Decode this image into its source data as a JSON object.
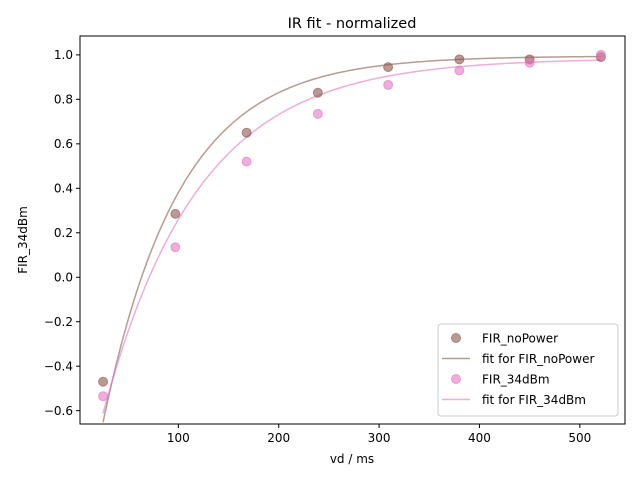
{
  "chart_data": {
    "type": "scatter",
    "title": "IR fit - normalized",
    "xlabel": "vd / ms",
    "ylabel": "FIR_34dBm",
    "xlim": [
      2,
      545
    ],
    "ylim": [
      -0.66,
      1.085
    ],
    "xticks": [
      100,
      200,
      300,
      400,
      500
    ],
    "yticks": [
      -0.6,
      -0.4,
      -0.2,
      0.0,
      0.2,
      0.4,
      0.6,
      0.8,
      1.0
    ],
    "grid": false,
    "legend_position": "lower right",
    "series": [
      {
        "name": "FIR_noPower",
        "kind": "points",
        "color": "#8c564b",
        "x": [
          25,
          97,
          168,
          239,
          309,
          380,
          450,
          521
        ],
        "y": [
          -0.47,
          0.285,
          0.65,
          0.83,
          0.945,
          0.98,
          0.98,
          0.99
        ]
      },
      {
        "name": "fit for FIR_noPower",
        "kind": "line",
        "color": "#8c564b",
        "model": {
          "A": 0.995,
          "B": 2.3,
          "T1": 76
        }
      },
      {
        "name": "FIR_34dBm",
        "kind": "points",
        "color": "#e377c2",
        "x": [
          25,
          97,
          168,
          239,
          309,
          380,
          450,
          521
        ],
        "y": [
          -0.535,
          0.135,
          0.52,
          0.735,
          0.865,
          0.93,
          0.965,
          1.0
        ]
      },
      {
        "name": "fit for FIR_34dBm",
        "kind": "line",
        "color": "#e377c2",
        "model": {
          "A": 0.985,
          "B": 2.11,
          "T1": 95
        }
      }
    ]
  }
}
